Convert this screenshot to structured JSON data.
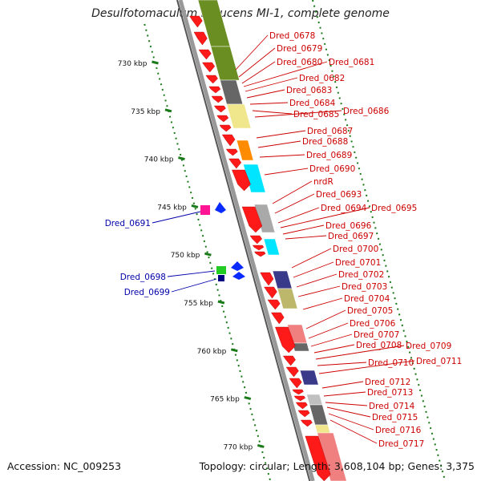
{
  "title": "Desulfotomaculum reducens MI-1, complete genome",
  "footer": {
    "accession": "Accession: NC_009253",
    "topology": "Topology: circular; Length: 3,608,104 bp; Genes: 3,375"
  },
  "ticks": [
    "730 kbp",
    "735 kbp",
    "740 kbp",
    "745 kbp",
    "750 kbp",
    "755 kbp",
    "760 kbp",
    "765 kbp",
    "770 kbp"
  ],
  "labels_right": [
    "Dred_0678",
    "Dred_0679",
    "Dred_0680",
    "Dred_0681",
    "Dred_0682",
    "Dred_0683",
    "Dred_0684",
    "Dred_0685",
    "Dred_0686",
    "Dred_0687",
    "Dred_0688",
    "Dred_0689",
    "Dred_0690",
    "nrdR",
    "Dred_0693",
    "Dred_0694",
    "Dred_0695",
    "Dred_0696",
    "Dred_0697",
    "Dred_0700",
    "Dred_0701",
    "Dred_0702",
    "Dred_0703",
    "Dred_0704",
    "Dred_0705",
    "Dred_0706",
    "Dred_0707",
    "Dred_0708",
    "Dred_0709",
    "Dred_0710",
    "Dred_0711",
    "Dred_0712",
    "Dred_0713",
    "Dred_0714",
    "Dred_0715",
    "Dred_0716",
    "Dred_0717"
  ],
  "labels_left": [
    "Dred_0691",
    "Dred_0698",
    "Dred_0699"
  ],
  "colors": {
    "label_right": "#cc0000",
    "label_left": "#0000aa",
    "tick": "#1a7a1a",
    "axis": "#999999",
    "gene_forward": "#ff1a1a",
    "gene_reverse": "#0a2bff"
  }
}
